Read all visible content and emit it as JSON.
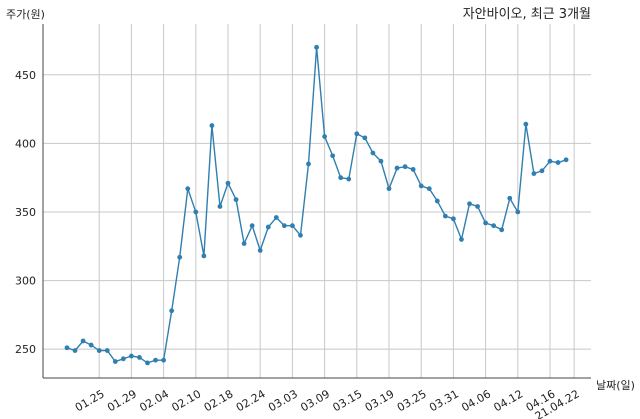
{
  "chart_data": {
    "type": "line",
    "title": "자안바이오, 최근 3개월",
    "ylabel": "주가(원)",
    "xlabel": "날짜(일)",
    "ylim": [
      229,
      487
    ],
    "yticks": [
      250,
      300,
      350,
      400,
      450
    ],
    "grid": true,
    "colors": {
      "line": "#2f7fb0",
      "grid": "#c8c8c8",
      "axis": "#444444"
    },
    "x_tick_labels": [
      "01.25",
      "01.29",
      "02.04",
      "02.10",
      "02.18",
      "02.24",
      "03.03",
      "03.09",
      "03.15",
      "03.19",
      "03.25",
      "03.31",
      "04.06",
      "04.12",
      "04.16",
      "21.04.22"
    ],
    "x_tick_index": [
      4,
      8,
      12,
      16,
      20,
      24,
      28,
      32,
      36,
      40,
      44,
      48,
      52,
      56,
      60,
      63
    ],
    "series": [
      {
        "values": [
          251,
          249,
          256,
          253,
          249,
          249,
          241,
          243,
          245,
          244,
          240,
          242,
          242,
          278,
          317,
          367,
          350,
          318,
          413,
          354,
          371,
          359,
          327,
          340,
          322,
          339,
          346,
          340,
          340,
          333,
          385,
          470,
          405,
          391,
          375,
          374,
          407,
          404,
          393,
          387,
          367,
          382,
          383,
          381,
          369,
          367,
          358,
          347,
          345,
          330,
          356,
          354,
          342,
          340,
          337,
          360,
          350,
          414,
          378,
          380,
          387,
          386,
          388
        ]
      }
    ]
  }
}
